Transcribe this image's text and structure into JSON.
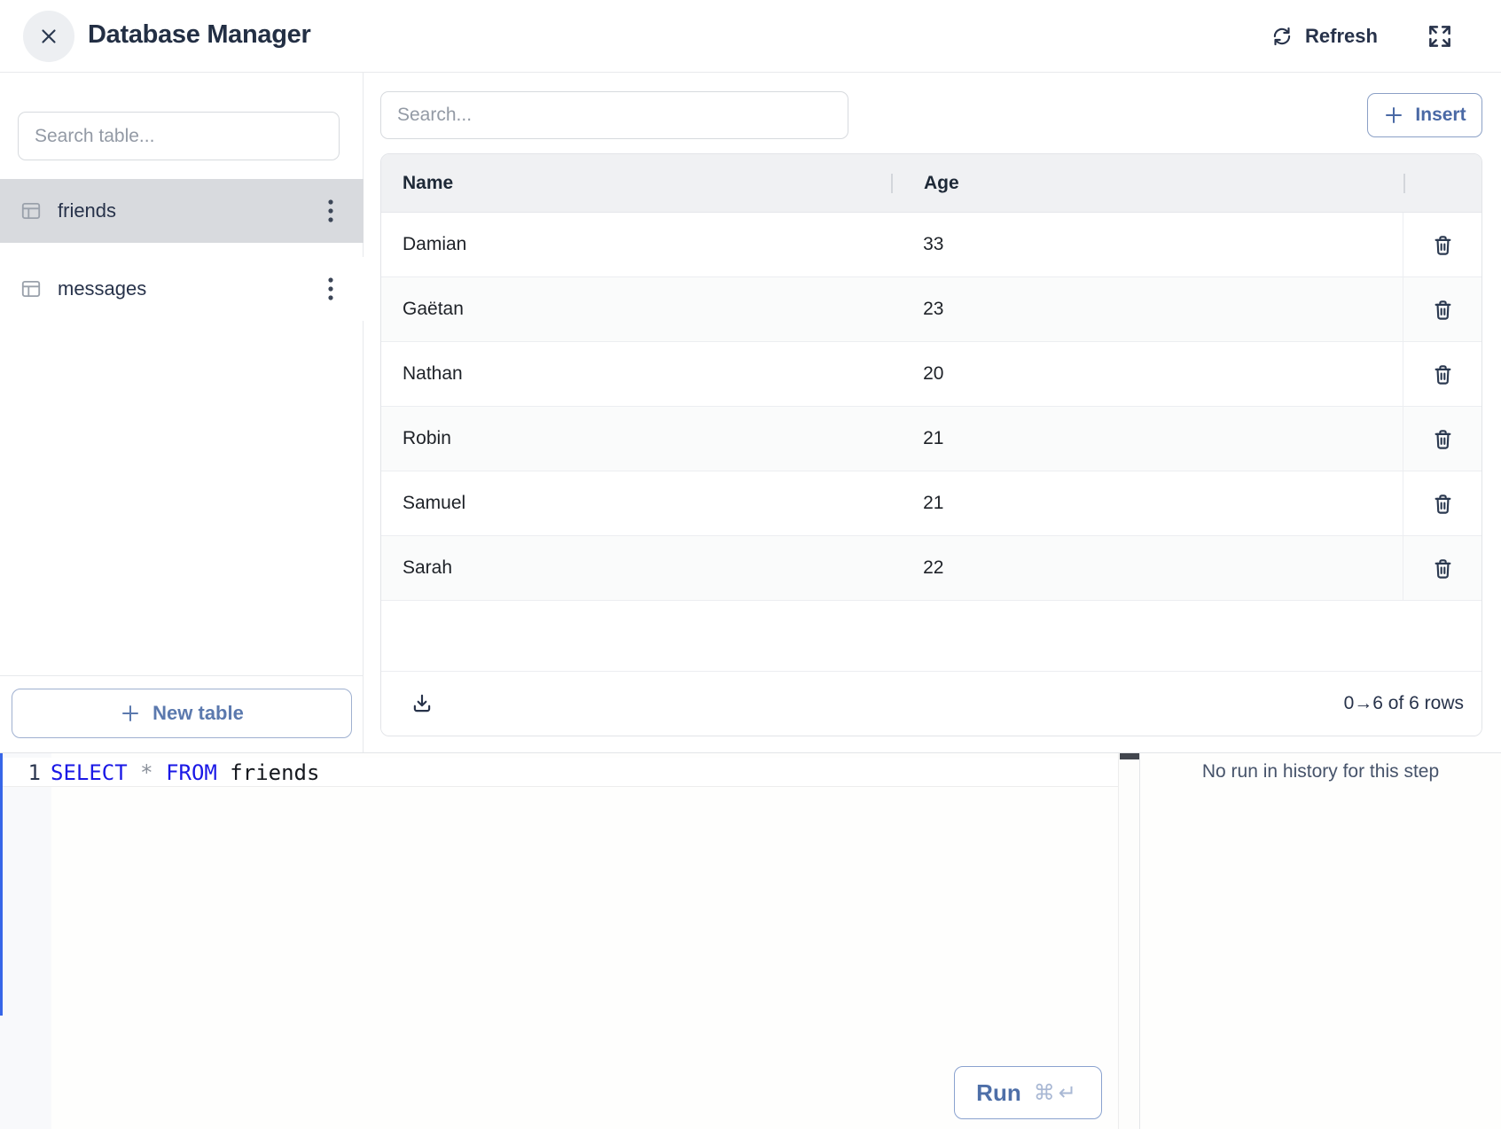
{
  "header": {
    "title": "Database Manager",
    "refresh_label": "Refresh"
  },
  "sidebar": {
    "search_placeholder": "Search table...",
    "tables": [
      {
        "name": "friends",
        "selected": true
      },
      {
        "name": "messages",
        "selected": false
      }
    ],
    "new_table_label": "New table"
  },
  "main": {
    "search_placeholder": "Search...",
    "insert_label": "Insert",
    "table": {
      "columns": [
        "Name",
        "Age"
      ],
      "rows": [
        {
          "name": "Damian",
          "age": "33"
        },
        {
          "name": "Gaëtan",
          "age": "23"
        },
        {
          "name": "Nathan",
          "age": "20"
        },
        {
          "name": "Robin",
          "age": "21"
        },
        {
          "name": "Samuel",
          "age": "21"
        },
        {
          "name": "Sarah",
          "age": "22"
        }
      ],
      "footer": {
        "range_label": "0→6 of 6 rows"
      }
    }
  },
  "editor": {
    "line_number": "1",
    "sql_tokens": [
      {
        "text": "SELECT",
        "type": "keyword"
      },
      {
        "text": " ",
        "type": "plain"
      },
      {
        "text": "*",
        "type": "operator"
      },
      {
        "text": " ",
        "type": "plain"
      },
      {
        "text": "FROM",
        "type": "keyword"
      },
      {
        "text": " friends",
        "type": "plain"
      }
    ],
    "run_label": "Run",
    "run_shortcut": "⌘↵"
  },
  "history_panel": {
    "empty_message": "No run in history for this step"
  },
  "colors": {
    "keyword_blue": "#1a18e6",
    "accent_blue": "#4e6fa8",
    "selected_table_bg": "#d8dade",
    "focus_strip_blue": "#3766e8",
    "table_header_bg": "#f0f1f3"
  }
}
